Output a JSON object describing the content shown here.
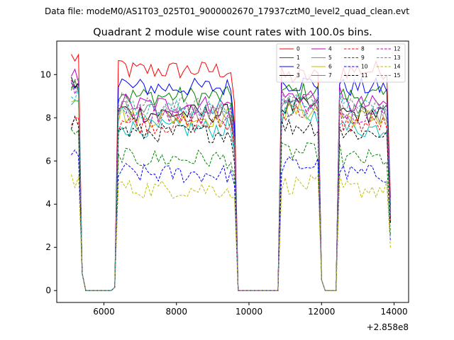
{
  "chart_data": {
    "type": "line",
    "suptitle": "Data file: modeM0/AS1T03_025T01_9000002670_17937cztM0_level2_quad_clean.evt",
    "title": "Quadrant 2 module wise count rates with 100.0s bins.",
    "xlabel": "",
    "ylabel": "",
    "offset_label": "+2.858e8",
    "xlim": [
      4700,
      14400
    ],
    "ylim": [
      -0.55,
      11.55
    ],
    "xticks": [
      6000,
      8000,
      10000,
      12000,
      14000
    ],
    "xtick_labels": [
      "6000",
      "8000",
      "10000",
      "12000",
      "14000"
    ],
    "yticks": [
      0,
      2,
      4,
      6,
      8,
      10
    ],
    "ytick_labels": [
      "0",
      "2",
      "4",
      "6",
      "8",
      "10"
    ],
    "legend_position": "top-right",
    "segments": [
      {
        "start": 5100,
        "end": 6300
      },
      {
        "start": 6400,
        "end": 9600
      },
      {
        "start": 9650,
        "end": 10900
      },
      {
        "start": 10950,
        "end": 12000
      },
      {
        "start": 12050,
        "end": 12500
      },
      {
        "start": 12550,
        "end": 13950
      }
    ],
    "series": [
      {
        "name": "0",
        "color": "#ff0000",
        "dash": false,
        "level": 10.2,
        "first": 10.8,
        "mid": 9.9
      },
      {
        "name": "1",
        "color": "#008000",
        "dash": false,
        "level": 9.0,
        "first": 9.6,
        "mid": 9.2
      },
      {
        "name": "2",
        "color": "#0000ff",
        "dash": false,
        "level": 9.4,
        "first": 9.8,
        "mid": 9.6
      },
      {
        "name": "3",
        "color": "#000000",
        "dash": false,
        "level": 8.2,
        "first": 9.6,
        "mid": 8.5
      },
      {
        "name": "4",
        "color": "#bf00bf",
        "dash": false,
        "level": 8.6,
        "first": 9.9,
        "mid": 9.0
      },
      {
        "name": "5",
        "color": "#00bfbf",
        "dash": false,
        "level": 7.5,
        "first": 8.6,
        "mid": 8.1
      },
      {
        "name": "6",
        "color": "#bfbf00",
        "dash": false,
        "level": 8.0,
        "first": 9.1,
        "mid": 8.3
      },
      {
        "name": "7",
        "color": "#808080",
        "dash": false,
        "level": 8.2,
        "first": 9.4,
        "mid": 8.6
      },
      {
        "name": "8",
        "color": "#ff0000",
        "dash": true,
        "level": 7.7,
        "first": 8.1,
        "mid": 8.3
      },
      {
        "name": "9",
        "color": "#008000",
        "dash": true,
        "level": 6.1,
        "first": 7.1,
        "mid": 6.4
      },
      {
        "name": "10",
        "color": "#0000ff",
        "dash": true,
        "level": 5.4,
        "first": 6.1,
        "mid": 5.8
      },
      {
        "name": "11",
        "color": "#000000",
        "dash": true,
        "level": 7.3,
        "first": 7.8,
        "mid": 7.6
      },
      {
        "name": "12",
        "color": "#bf00bf",
        "dash": true,
        "level": 8.2,
        "first": 9.4,
        "mid": 8.6
      },
      {
        "name": "13",
        "color": "#00bfbf",
        "dash": true,
        "level": 8.4,
        "first": 9.2,
        "mid": 8.8
      },
      {
        "name": "14",
        "color": "#bfbf00",
        "dash": true,
        "level": 4.7,
        "first": 5.2,
        "mid": 4.9
      },
      {
        "name": "15",
        "color": "#808080",
        "dash": true,
        "level": 8.5,
        "first": 9.7,
        "mid": 8.9
      }
    ]
  }
}
